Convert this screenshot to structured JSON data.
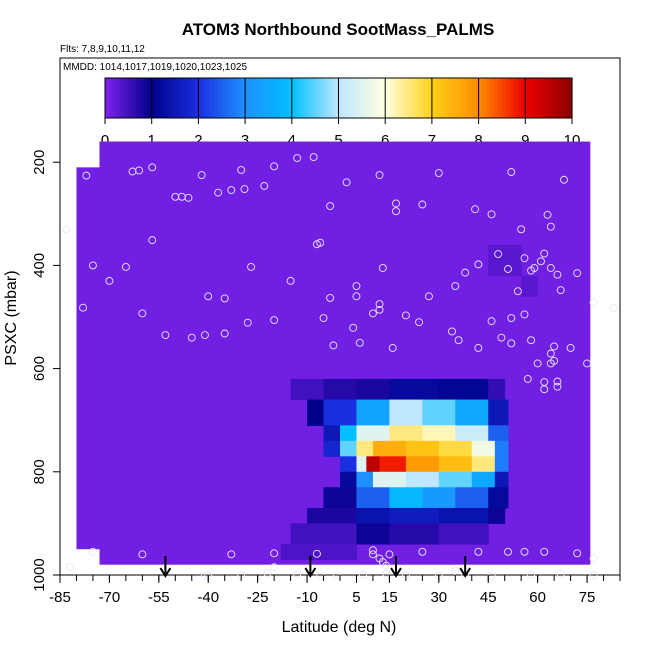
{
  "chart_data": {
    "type": "heatmap",
    "title": "ATOM3 Northbound SootMass_PALMS",
    "subtitle_flights": "Flts: 7,8,9,10,11,12",
    "subtitle_dates": "MMDD: 1014,1017,1019,1020,1023,1025",
    "xlabel": "Latitude (deg N)",
    "ylabel": "PSXC (mbar)",
    "xlim": [
      -85,
      85
    ],
    "ylim": [
      1000,
      0
    ],
    "x_ticks": [
      -85,
      -70,
      -55,
      -40,
      -25,
      -10,
      5,
      15,
      30,
      45,
      60,
      75
    ],
    "y_ticks": [
      200,
      400,
      600,
      800,
      1000
    ],
    "colorbar": {
      "range": [
        0,
        10
      ],
      "ticks": [
        0,
        1,
        2,
        3,
        4,
        5,
        6,
        7,
        8,
        9,
        10
      ],
      "colors": [
        "#7f22ee",
        "#00008b",
        "#1a2fe0",
        "#1e90ff",
        "#00bfff",
        "#bfe7ff",
        "#ffffe0",
        "#ffd11a",
        "#ff8c00",
        "#ee0000",
        "#8b0000"
      ]
    },
    "background_value": 0.1,
    "data_extent": [
      {
        "lat": [
          -80,
          -57
        ],
        "p": [
          210,
          950
        ]
      },
      {
        "lat": [
          -57,
          -40
        ],
        "p": [
          210,
          970
        ]
      },
      {
        "lat": [
          -40,
          -73
        ],
        "p": [
          160,
          210
        ]
      },
      {
        "lat": [
          -73,
          76
        ],
        "p": [
          160,
          980
        ]
      }
    ],
    "soot_cells": [
      {
        "lat": [
          -15,
          -5
        ],
        "p": [
          620,
          660
        ],
        "v": 0.5
      },
      {
        "lat": [
          -5,
          5
        ],
        "p": [
          620,
          660
        ],
        "v": 0.7
      },
      {
        "lat": [
          5,
          15
        ],
        "p": [
          620,
          660
        ],
        "v": 0.8
      },
      {
        "lat": [
          15,
          30
        ],
        "p": [
          620,
          660
        ],
        "v": 1.2
      },
      {
        "lat": [
          30,
          45
        ],
        "p": [
          620,
          660
        ],
        "v": 1.1
      },
      {
        "lat": [
          45,
          50
        ],
        "p": [
          620,
          660
        ],
        "v": 0.6
      },
      {
        "lat": [
          -10,
          -5
        ],
        "p": [
          660,
          710
        ],
        "v": 1.0
      },
      {
        "lat": [
          -5,
          5
        ],
        "p": [
          660,
          710
        ],
        "v": 2.0
      },
      {
        "lat": [
          5,
          15
        ],
        "p": [
          660,
          710
        ],
        "v": 3.4
      },
      {
        "lat": [
          15,
          25
        ],
        "p": [
          660,
          710
        ],
        "v": 5.0
      },
      {
        "lat": [
          25,
          35
        ],
        "p": [
          660,
          710
        ],
        "v": 4.5
      },
      {
        "lat": [
          35,
          45
        ],
        "p": [
          660,
          710
        ],
        "v": 3.5
      },
      {
        "lat": [
          45,
          51
        ],
        "p": [
          660,
          710
        ],
        "v": 1.5
      },
      {
        "lat": [
          -5,
          0
        ],
        "p": [
          710,
          740
        ],
        "v": 1.5
      },
      {
        "lat": [
          0,
          5
        ],
        "p": [
          710,
          740
        ],
        "v": 4.0
      },
      {
        "lat": [
          5,
          15
        ],
        "p": [
          710,
          740
        ],
        "v": 5.5
      },
      {
        "lat": [
          15,
          25
        ],
        "p": [
          710,
          740
        ],
        "v": 6.5
      },
      {
        "lat": [
          25,
          35
        ],
        "p": [
          710,
          740
        ],
        "v": 6.2
      },
      {
        "lat": [
          35,
          45
        ],
        "p": [
          710,
          740
        ],
        "v": 5.2
      },
      {
        "lat": [
          45,
          51
        ],
        "p": [
          710,
          740
        ],
        "v": 2.5
      },
      {
        "lat": [
          -5,
          0
        ],
        "p": [
          740,
          770
        ],
        "v": 1.8
      },
      {
        "lat": [
          0,
          5
        ],
        "p": [
          740,
          770
        ],
        "v": 4.5
      },
      {
        "lat": [
          5,
          10
        ],
        "p": [
          740,
          770
        ],
        "v": 6.5
      },
      {
        "lat": [
          10,
          20
        ],
        "p": [
          740,
          770
        ],
        "v": 7.5
      },
      {
        "lat": [
          20,
          30
        ],
        "p": [
          740,
          770
        ],
        "v": 7.2
      },
      {
        "lat": [
          30,
          40
        ],
        "p": [
          740,
          770
        ],
        "v": 6.8
      },
      {
        "lat": [
          40,
          47
        ],
        "p": [
          740,
          770
        ],
        "v": 5.8
      },
      {
        "lat": [
          47,
          51
        ],
        "p": [
          740,
          770
        ],
        "v": 2.8
      },
      {
        "lat": [
          0,
          5
        ],
        "p": [
          770,
          800
        ],
        "v": 2.0
      },
      {
        "lat": [
          5,
          8
        ],
        "p": [
          770,
          800
        ],
        "v": 5.5
      },
      {
        "lat": [
          8,
          12
        ],
        "p": [
          770,
          800
        ],
        "v": 9.5
      },
      {
        "lat": [
          12,
          20
        ],
        "p": [
          770,
          800
        ],
        "v": 8.8
      },
      {
        "lat": [
          20,
          30
        ],
        "p": [
          770,
          800
        ],
        "v": 7.8
      },
      {
        "lat": [
          30,
          40
        ],
        "p": [
          770,
          800
        ],
        "v": 7.3
      },
      {
        "lat": [
          40,
          47
        ],
        "p": [
          770,
          800
        ],
        "v": 6.5
      },
      {
        "lat": [
          47,
          51
        ],
        "p": [
          770,
          800
        ],
        "v": 2.8
      },
      {
        "lat": [
          0,
          5
        ],
        "p": [
          800,
          830
        ],
        "v": 1.2
      },
      {
        "lat": [
          5,
          10
        ],
        "p": [
          800,
          830
        ],
        "v": 3.0
      },
      {
        "lat": [
          10,
          20
        ],
        "p": [
          800,
          830
        ],
        "v": 5.5
      },
      {
        "lat": [
          20,
          30
        ],
        "p": [
          800,
          830
        ],
        "v": 5.0
      },
      {
        "lat": [
          30,
          40
        ],
        "p": [
          800,
          830
        ],
        "v": 4.5
      },
      {
        "lat": [
          40,
          47
        ],
        "p": [
          800,
          830
        ],
        "v": 3.5
      },
      {
        "lat": [
          47,
          51
        ],
        "p": [
          800,
          830
        ],
        "v": 1.5
      },
      {
        "lat": [
          -5,
          5
        ],
        "p": [
          830,
          870
        ],
        "v": 0.9
      },
      {
        "lat": [
          5,
          15
        ],
        "p": [
          830,
          870
        ],
        "v": 2.5
      },
      {
        "lat": [
          15,
          25
        ],
        "p": [
          830,
          870
        ],
        "v": 3.8
      },
      {
        "lat": [
          25,
          35
        ],
        "p": [
          830,
          870
        ],
        "v": 3.2
      },
      {
        "lat": [
          35,
          45
        ],
        "p": [
          830,
          870
        ],
        "v": 2.5
      },
      {
        "lat": [
          45,
          51
        ],
        "p": [
          830,
          870
        ],
        "v": 1.2
      },
      {
        "lat": [
          -10,
          5
        ],
        "p": [
          870,
          900
        ],
        "v": 0.8
      },
      {
        "lat": [
          5,
          15
        ],
        "p": [
          870,
          900
        ],
        "v": 1.4
      },
      {
        "lat": [
          15,
          30
        ],
        "p": [
          870,
          900
        ],
        "v": 1.6
      },
      {
        "lat": [
          30,
          45
        ],
        "p": [
          870,
          900
        ],
        "v": 1.4
      },
      {
        "lat": [
          45,
          50
        ],
        "p": [
          870,
          900
        ],
        "v": 0.9
      },
      {
        "lat": [
          -15,
          5
        ],
        "p": [
          900,
          940
        ],
        "v": 0.5
      },
      {
        "lat": [
          5,
          15
        ],
        "p": [
          900,
          940
        ],
        "v": 0.9
      },
      {
        "lat": [
          15,
          30
        ],
        "p": [
          900,
          940
        ],
        "v": 0.7
      },
      {
        "lat": [
          30,
          45
        ],
        "p": [
          900,
          940
        ],
        "v": 0.5
      },
      {
        "lat": [
          -18,
          5
        ],
        "p": [
          940,
          970
        ],
        "v": 0.4
      },
      {
        "lat": [
          45,
          55
        ],
        "p": [
          360,
          420
        ],
        "v": 0.3
      },
      {
        "lat": [
          55,
          60
        ],
        "p": [
          420,
          460
        ],
        "v": 0.3
      }
    ],
    "sample_points": [
      [
        -77,
        226
      ],
      [
        -63,
        218
      ],
      [
        -61,
        216
      ],
      [
        -57,
        210
      ],
      [
        -42,
        225
      ],
      [
        -30,
        215
      ],
      [
        -20,
        208
      ],
      [
        -13,
        192
      ],
      [
        -8,
        190
      ],
      [
        -46,
        269
      ],
      [
        -48,
        267
      ],
      [
        -50,
        267
      ],
      [
        -37,
        259
      ],
      [
        -33,
        254
      ],
      [
        -29,
        252
      ],
      [
        -23,
        246
      ],
      [
        2,
        239
      ],
      [
        12,
        225
      ],
      [
        30,
        221
      ],
      [
        52,
        219
      ],
      [
        68,
        234
      ],
      [
        -3,
        285
      ],
      [
        17,
        280
      ],
      [
        25,
        282
      ],
      [
        17,
        295
      ],
      [
        41,
        291
      ],
      [
        46,
        301
      ],
      [
        55,
        330
      ],
      [
        63,
        302
      ],
      [
        64,
        325
      ],
      [
        -83,
        330
      ],
      [
        -75,
        400
      ],
      [
        -65,
        403
      ],
      [
        -70,
        430
      ],
      [
        -57,
        351
      ],
      [
        -40,
        460
      ],
      [
        -35,
        464
      ],
      [
        -27,
        403
      ],
      [
        -15,
        430
      ],
      [
        -7,
        359
      ],
      [
        -6,
        356
      ],
      [
        5,
        440
      ],
      [
        5,
        460
      ],
      [
        -3,
        463
      ],
      [
        13,
        405
      ],
      [
        27,
        460
      ],
      [
        35,
        440
      ],
      [
        38,
        414
      ],
      [
        42,
        398
      ],
      [
        48,
        378
      ],
      [
        51,
        407
      ],
      [
        58,
        410
      ],
      [
        61,
        392
      ],
      [
        62,
        377
      ],
      [
        56,
        386
      ],
      [
        59,
        405
      ],
      [
        64,
        405
      ],
      [
        66,
        418
      ],
      [
        54,
        450
      ],
      [
        67,
        448
      ],
      [
        72,
        415
      ],
      [
        -78,
        482
      ],
      [
        -60,
        493
      ],
      [
        -53,
        535
      ],
      [
        -45,
        540
      ],
      [
        -41,
        535
      ],
      [
        -35,
        532
      ],
      [
        -28,
        511
      ],
      [
        -20,
        506
      ],
      [
        -5,
        502
      ],
      [
        4,
        521
      ],
      [
        10,
        493
      ],
      [
        12,
        475
      ],
      [
        12,
        486
      ],
      [
        20,
        497
      ],
      [
        24,
        510
      ],
      [
        34,
        528
      ],
      [
        36,
        545
      ],
      [
        46,
        508
      ],
      [
        52,
        502
      ],
      [
        56,
        495
      ],
      [
        58,
        545
      ],
      [
        65,
        557
      ],
      [
        70,
        560
      ],
      [
        77,
        472
      ],
      [
        83,
        483
      ],
      [
        -2,
        555
      ],
      [
        6,
        550
      ],
      [
        16,
        560
      ],
      [
        42,
        560
      ],
      [
        49,
        540
      ],
      [
        52,
        551
      ],
      [
        64,
        571
      ],
      [
        65,
        585
      ],
      [
        60,
        590
      ],
      [
        64,
        590
      ],
      [
        75,
        590
      ],
      [
        57,
        620
      ],
      [
        62,
        626
      ],
      [
        66,
        625
      ],
      [
        62,
        640
      ],
      [
        66,
        635
      ],
      [
        10,
        952
      ],
      [
        10,
        960
      ],
      [
        12,
        968
      ],
      [
        13,
        975
      ],
      [
        14,
        982
      ],
      [
        -75,
        955
      ],
      [
        -60,
        960
      ],
      [
        -33,
        960
      ],
      [
        -20,
        958
      ],
      [
        -7,
        959
      ],
      [
        15,
        960
      ],
      [
        25,
        955
      ],
      [
        42,
        955
      ],
      [
        51,
        955
      ],
      [
        56,
        955
      ],
      [
        62,
        955
      ],
      [
        72,
        958
      ],
      [
        77,
        968
      ],
      [
        -40,
        1000
      ],
      [
        -30,
        1000
      ],
      [
        -22,
        996
      ],
      [
        -13,
        998
      ],
      [
        -6,
        1002
      ],
      [
        -1,
        1001
      ],
      [
        7,
        1000
      ],
      [
        14,
        997
      ],
      [
        20,
        1000
      ],
      [
        30,
        1001
      ],
      [
        38,
        1000
      ],
      [
        46,
        1001
      ],
      [
        58,
        1000
      ],
      [
        67,
        998
      ],
      [
        77,
        1000
      ],
      [
        -82,
        985
      ],
      [
        -20,
        985
      ],
      [
        35,
        992
      ],
      [
        -41,
        1002
      ]
    ],
    "arrows_lat": [
      -53,
      -9,
      17,
      38
    ]
  }
}
